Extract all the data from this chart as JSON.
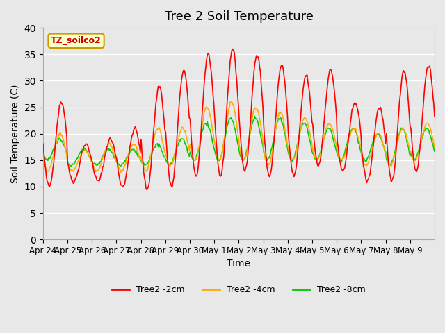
{
  "title": "Tree 2 Soil Temperature",
  "xlabel": "Time",
  "ylabel": "Soil Temperature (C)",
  "ylim": [
    0,
    40
  ],
  "yticks": [
    0,
    5,
    10,
    15,
    20,
    25,
    30,
    35,
    40
  ],
  "xtick_labels": [
    "Apr 24",
    "Apr 25",
    "Apr 26",
    "Apr 27",
    "Apr 28",
    "Apr 29",
    "Apr 30",
    "May 1",
    "May 2",
    "May 3",
    "May 4",
    "May 5",
    "May 6",
    "May 7",
    "May 8",
    "May 9"
  ],
  "annotation_text": "TZ_soilco2",
  "annotation_color": "#cc0000",
  "annotation_bg": "#ffffcc",
  "annotation_border": "#cc9900",
  "line_colors": {
    "2cm": "#ff0000",
    "4cm": "#ffaa00",
    "8cm": "#00cc00"
  },
  "legend_labels": [
    "Tree2 -2cm",
    "Tree2 -4cm",
    "Tree2 -8cm"
  ],
  "bg_color": "#e8e8e8",
  "n_days": 16,
  "n_points": 480,
  "red_mins": [
    10,
    11,
    11,
    10,
    9.5,
    10,
    12,
    12,
    13,
    12,
    12,
    14,
    13,
    11,
    11,
    13
  ],
  "red_maxs": [
    26,
    18,
    19,
    21,
    29,
    32,
    35,
    36,
    35,
    33,
    31,
    32,
    26,
    25,
    32,
    33
  ],
  "ora_mins": [
    13,
    13,
    13,
    13,
    13,
    14,
    15,
    15,
    15,
    14,
    15,
    15,
    15,
    14,
    14,
    15
  ],
  "ora_maxs": [
    20,
    17,
    18,
    18,
    21,
    21,
    25,
    26,
    25,
    24,
    23,
    22,
    21,
    20,
    21,
    22
  ],
  "grn_mins": [
    15,
    14,
    14,
    14,
    14,
    14,
    15,
    15,
    15,
    15,
    15,
    15,
    15,
    15,
    14,
    15
  ],
  "grn_maxs": [
    19,
    17,
    17,
    17,
    18,
    19,
    22,
    23,
    23,
    23,
    22,
    21,
    21,
    20,
    21,
    21
  ]
}
